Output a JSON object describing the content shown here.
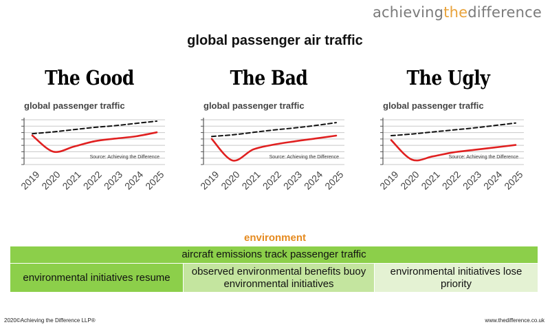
{
  "logo": {
    "part1": "achieving",
    "part2": "the",
    "part3": "difference"
  },
  "title": "global passenger air traffic",
  "chart_data": [
    {
      "type": "line",
      "heading": "The Good",
      "title": "global passenger traffic",
      "source": "Source: Achieving the Difference",
      "categories": [
        "2019",
        "2020",
        "2021",
        "2022",
        "2023",
        "2024",
        "2025"
      ],
      "series": [
        {
          "values": [
            6.5,
            2.9,
            4.0,
            5.2,
            5.8,
            6.3,
            7.2
          ],
          "color": "#e02020",
          "style": "solid"
        },
        {
          "values": [
            6.9,
            7.3,
            7.8,
            8.3,
            8.7,
            9.2,
            9.7
          ],
          "color": "#111111",
          "style": "dashed"
        }
      ],
      "ylim": [
        0,
        10
      ],
      "grid": true
    },
    {
      "type": "line",
      "heading": "The Bad",
      "title": "global passenger traffic",
      "source": "Source: Achieving the Difference",
      "categories": [
        "2019",
        "2020",
        "2021",
        "2022",
        "2023",
        "2024",
        "2025"
      ],
      "series": [
        {
          "values": [
            6.3,
            1.0,
            3.7,
            4.9,
            5.7,
            6.4,
            7.1
          ],
          "color": "#e02020",
          "style": "solid"
        },
        {
          "values": [
            6.9,
            7.3,
            7.9,
            8.5,
            9.0,
            9.6,
            10.3
          ],
          "color": "#111111",
          "style": "dashed"
        }
      ],
      "ylim": [
        0,
        11
      ],
      "grid": true
    },
    {
      "type": "line",
      "heading": "The Ugly",
      "title": "global passenger traffic",
      "source": "Source: Achieving the Difference",
      "categories": [
        "2019",
        "2020",
        "2021",
        "2022",
        "2023",
        "2024",
        "2025"
      ],
      "series": [
        {
          "values": [
            6.0,
            1.2,
            2.0,
            3.0,
            3.6,
            4.2,
            4.8
          ],
          "color": "#e02020",
          "style": "solid"
        },
        {
          "values": [
            7.1,
            7.5,
            8.0,
            8.5,
            9.0,
            9.6,
            10.2
          ],
          "color": "#111111",
          "style": "dashed"
        }
      ],
      "ylim": [
        0,
        11
      ],
      "grid": true
    }
  ],
  "environment": {
    "heading": "environment",
    "bar": "aircraft emissions track passenger traffic",
    "col1": "environmental initiatives resume",
    "col2": "observed environmental benefits buoy environmental initiatives",
    "col3": "environmental initiatives lose priority"
  },
  "footer": {
    "left": "2020©Achieving the Difference LLP®",
    "right": "www.thedifference.co.uk"
  }
}
